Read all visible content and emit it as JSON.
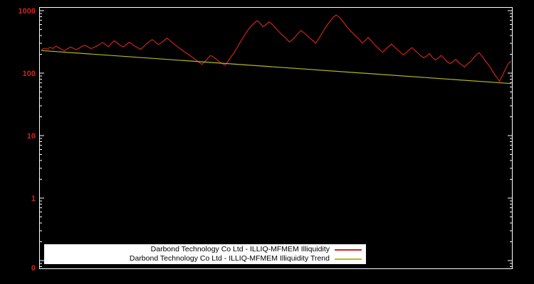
{
  "chart_data": {
    "type": "line",
    "title": "",
    "xlabel": "",
    "ylabel": "",
    "y_scale": "log",
    "ylim": [
      0.08,
      1000
    ],
    "y_ticks": [
      "1000",
      "100",
      "10",
      "1",
      "0"
    ],
    "grid": "off",
    "legend_position": "bottom-center",
    "series": [
      {
        "name": "Darbond Technology Co Ltd - ILLIQ-MFMEM Illiquidity",
        "color": "#cc2222",
        "values": [
          235,
          250,
          242,
          260,
          248,
          270,
          255,
          240,
          228,
          246,
          262,
          250,
          238,
          252,
          268,
          280,
          262,
          248,
          258,
          272,
          290,
          310,
          286,
          265,
          300,
          330,
          305,
          280,
          262,
          285,
          312,
          295,
          270,
          255,
          240,
          265,
          295,
          320,
          345,
          315,
          288,
          302,
          332,
          362,
          335,
          305,
          280,
          258,
          238,
          220,
          205,
          190,
          176,
          162,
          150,
          138,
          152,
          172,
          192,
          180,
          166,
          152,
          142,
          134,
          156,
          182,
          212,
          252,
          305,
          362,
          432,
          505,
          572,
          640,
          692,
          622,
          552,
          602,
          662,
          612,
          542,
          482,
          432,
          392,
          352,
          315,
          342,
          382,
          432,
          482,
          442,
          402,
          362,
          332,
          302,
          352,
          422,
          502,
          592,
          682,
          782,
          852,
          792,
          702,
          612,
          532,
          472,
          422,
          382,
          342,
          302,
          332,
          372,
          332,
          292,
          262,
          236,
          216,
          242,
          266,
          292,
          262,
          238,
          216,
          196,
          212,
          236,
          256,
          232,
          210,
          190,
          176,
          188,
          206,
          178,
          162,
          174,
          192,
          172,
          154,
          142,
          152,
          166,
          148,
          136,
          126,
          140,
          152,
          172,
          196,
          212,
          186,
          160,
          140,
          120,
          100,
          86,
          74,
          92,
          116,
          142,
          156
        ]
      },
      {
        "name": "Darbond Technology Co Ltd - ILLIQ-MFMEM Illiquidity Trend",
        "color": "#b8b81e",
        "values": [
          230,
          68
        ]
      }
    ]
  },
  "colors": {
    "background": "#000000",
    "plot_border": "#ffffff",
    "tick_label": "#cc2222",
    "legend_background": "#ffffff",
    "legend_text": "#000000",
    "series_illiquidity": "#cc2222",
    "series_trend": "#b8b81e"
  }
}
